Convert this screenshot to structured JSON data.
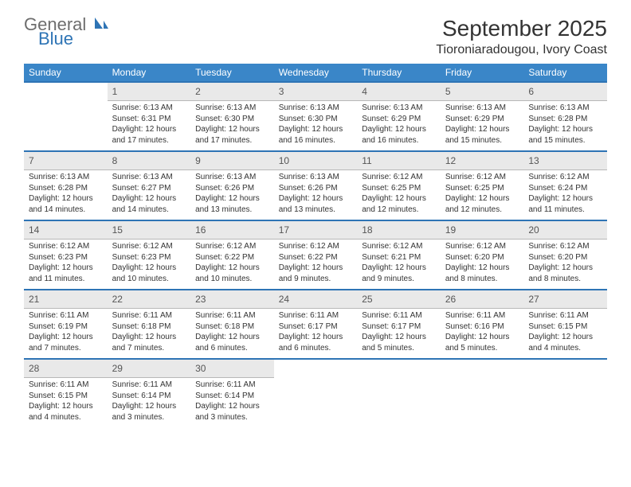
{
  "brand": {
    "line1": "General",
    "line2": "Blue"
  },
  "header": {
    "month_title": "September 2025",
    "location": "Tioroniaradougou, Ivory Coast"
  },
  "colors": {
    "header_bg": "#3a86c8",
    "header_text": "#ffffff",
    "daynum_bg": "#e9e9e9",
    "row_divider": "#2e74b5",
    "body_text": "#333333",
    "logo_gray": "#6d6d6d",
    "logo_blue": "#2e74b5"
  },
  "typography": {
    "month_title_fontsize": 28,
    "location_fontsize": 16,
    "day_header_fontsize": 12,
    "daynum_fontsize": 12,
    "detail_fontsize": 10
  },
  "day_headers": [
    "Sunday",
    "Monday",
    "Tuesday",
    "Wednesday",
    "Thursday",
    "Friday",
    "Saturday"
  ],
  "weeks": [
    [
      null,
      {
        "n": "1",
        "sr": "Sunrise: 6:13 AM",
        "ss": "Sunset: 6:31 PM",
        "dl1": "Daylight: 12 hours",
        "dl2": "and 17 minutes."
      },
      {
        "n": "2",
        "sr": "Sunrise: 6:13 AM",
        "ss": "Sunset: 6:30 PM",
        "dl1": "Daylight: 12 hours",
        "dl2": "and 17 minutes."
      },
      {
        "n": "3",
        "sr": "Sunrise: 6:13 AM",
        "ss": "Sunset: 6:30 PM",
        "dl1": "Daylight: 12 hours",
        "dl2": "and 16 minutes."
      },
      {
        "n": "4",
        "sr": "Sunrise: 6:13 AM",
        "ss": "Sunset: 6:29 PM",
        "dl1": "Daylight: 12 hours",
        "dl2": "and 16 minutes."
      },
      {
        "n": "5",
        "sr": "Sunrise: 6:13 AM",
        "ss": "Sunset: 6:29 PM",
        "dl1": "Daylight: 12 hours",
        "dl2": "and 15 minutes."
      },
      {
        "n": "6",
        "sr": "Sunrise: 6:13 AM",
        "ss": "Sunset: 6:28 PM",
        "dl1": "Daylight: 12 hours",
        "dl2": "and 15 minutes."
      }
    ],
    [
      {
        "n": "7",
        "sr": "Sunrise: 6:13 AM",
        "ss": "Sunset: 6:28 PM",
        "dl1": "Daylight: 12 hours",
        "dl2": "and 14 minutes."
      },
      {
        "n": "8",
        "sr": "Sunrise: 6:13 AM",
        "ss": "Sunset: 6:27 PM",
        "dl1": "Daylight: 12 hours",
        "dl2": "and 14 minutes."
      },
      {
        "n": "9",
        "sr": "Sunrise: 6:13 AM",
        "ss": "Sunset: 6:26 PM",
        "dl1": "Daylight: 12 hours",
        "dl2": "and 13 minutes."
      },
      {
        "n": "10",
        "sr": "Sunrise: 6:13 AM",
        "ss": "Sunset: 6:26 PM",
        "dl1": "Daylight: 12 hours",
        "dl2": "and 13 minutes."
      },
      {
        "n": "11",
        "sr": "Sunrise: 6:12 AM",
        "ss": "Sunset: 6:25 PM",
        "dl1": "Daylight: 12 hours",
        "dl2": "and 12 minutes."
      },
      {
        "n": "12",
        "sr": "Sunrise: 6:12 AM",
        "ss": "Sunset: 6:25 PM",
        "dl1": "Daylight: 12 hours",
        "dl2": "and 12 minutes."
      },
      {
        "n": "13",
        "sr": "Sunrise: 6:12 AM",
        "ss": "Sunset: 6:24 PM",
        "dl1": "Daylight: 12 hours",
        "dl2": "and 11 minutes."
      }
    ],
    [
      {
        "n": "14",
        "sr": "Sunrise: 6:12 AM",
        "ss": "Sunset: 6:23 PM",
        "dl1": "Daylight: 12 hours",
        "dl2": "and 11 minutes."
      },
      {
        "n": "15",
        "sr": "Sunrise: 6:12 AM",
        "ss": "Sunset: 6:23 PM",
        "dl1": "Daylight: 12 hours",
        "dl2": "and 10 minutes."
      },
      {
        "n": "16",
        "sr": "Sunrise: 6:12 AM",
        "ss": "Sunset: 6:22 PM",
        "dl1": "Daylight: 12 hours",
        "dl2": "and 10 minutes."
      },
      {
        "n": "17",
        "sr": "Sunrise: 6:12 AM",
        "ss": "Sunset: 6:22 PM",
        "dl1": "Daylight: 12 hours",
        "dl2": "and 9 minutes."
      },
      {
        "n": "18",
        "sr": "Sunrise: 6:12 AM",
        "ss": "Sunset: 6:21 PM",
        "dl1": "Daylight: 12 hours",
        "dl2": "and 9 minutes."
      },
      {
        "n": "19",
        "sr": "Sunrise: 6:12 AM",
        "ss": "Sunset: 6:20 PM",
        "dl1": "Daylight: 12 hours",
        "dl2": "and 8 minutes."
      },
      {
        "n": "20",
        "sr": "Sunrise: 6:12 AM",
        "ss": "Sunset: 6:20 PM",
        "dl1": "Daylight: 12 hours",
        "dl2": "and 8 minutes."
      }
    ],
    [
      {
        "n": "21",
        "sr": "Sunrise: 6:11 AM",
        "ss": "Sunset: 6:19 PM",
        "dl1": "Daylight: 12 hours",
        "dl2": "and 7 minutes."
      },
      {
        "n": "22",
        "sr": "Sunrise: 6:11 AM",
        "ss": "Sunset: 6:18 PM",
        "dl1": "Daylight: 12 hours",
        "dl2": "and 7 minutes."
      },
      {
        "n": "23",
        "sr": "Sunrise: 6:11 AM",
        "ss": "Sunset: 6:18 PM",
        "dl1": "Daylight: 12 hours",
        "dl2": "and 6 minutes."
      },
      {
        "n": "24",
        "sr": "Sunrise: 6:11 AM",
        "ss": "Sunset: 6:17 PM",
        "dl1": "Daylight: 12 hours",
        "dl2": "and 6 minutes."
      },
      {
        "n": "25",
        "sr": "Sunrise: 6:11 AM",
        "ss": "Sunset: 6:17 PM",
        "dl1": "Daylight: 12 hours",
        "dl2": "and 5 minutes."
      },
      {
        "n": "26",
        "sr": "Sunrise: 6:11 AM",
        "ss": "Sunset: 6:16 PM",
        "dl1": "Daylight: 12 hours",
        "dl2": "and 5 minutes."
      },
      {
        "n": "27",
        "sr": "Sunrise: 6:11 AM",
        "ss": "Sunset: 6:15 PM",
        "dl1": "Daylight: 12 hours",
        "dl2": "and 4 minutes."
      }
    ],
    [
      {
        "n": "28",
        "sr": "Sunrise: 6:11 AM",
        "ss": "Sunset: 6:15 PM",
        "dl1": "Daylight: 12 hours",
        "dl2": "and 4 minutes."
      },
      {
        "n": "29",
        "sr": "Sunrise: 6:11 AM",
        "ss": "Sunset: 6:14 PM",
        "dl1": "Daylight: 12 hours",
        "dl2": "and 3 minutes."
      },
      {
        "n": "30",
        "sr": "Sunrise: 6:11 AM",
        "ss": "Sunset: 6:14 PM",
        "dl1": "Daylight: 12 hours",
        "dl2": "and 3 minutes."
      },
      null,
      null,
      null,
      null
    ]
  ]
}
